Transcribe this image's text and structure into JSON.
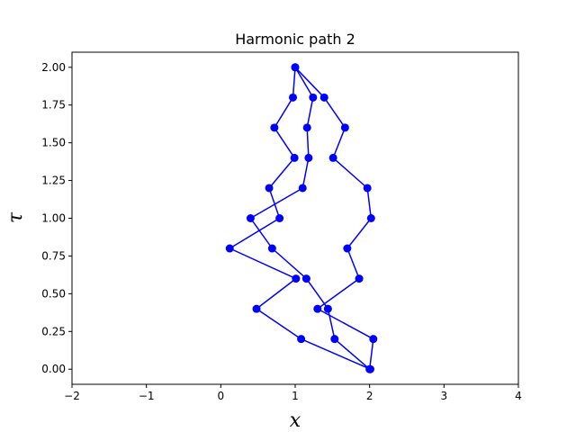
{
  "chart_data": {
    "type": "line",
    "title": "Harmonic path 2",
    "xlabel": "x",
    "ylabel": "τ",
    "xlim": [
      -2,
      4
    ],
    "ylim": [
      -0.1,
      2.1
    ],
    "xticks": [
      "−2",
      "−1",
      "0",
      "1",
      "2",
      "3",
      "4"
    ],
    "yticks": [
      "0.00",
      "0.25",
      "0.50",
      "0.75",
      "1.00",
      "1.25",
      "1.50",
      "1.75",
      "2.00"
    ],
    "grid": false,
    "color": "#0000ff",
    "series": [
      {
        "points": [
          [
            2.01,
            0.0
          ],
          [
            1.08,
            0.2
          ],
          [
            0.48,
            0.4
          ],
          [
            1.01,
            0.6
          ],
          [
            0.12,
            0.8
          ],
          [
            0.79,
            1.0
          ],
          [
            0.65,
            1.2
          ],
          [
            0.99,
            1.4
          ],
          [
            0.72,
            1.6
          ],
          [
            0.97,
            1.8
          ],
          [
            1.0,
            2.0
          ],
          [
            1.39,
            1.8
          ],
          [
            1.67,
            1.6
          ],
          [
            1.51,
            1.4
          ],
          [
            1.97,
            1.2
          ],
          [
            2.02,
            1.0
          ],
          [
            1.7,
            0.8
          ],
          [
            1.86,
            0.6
          ],
          [
            1.3,
            0.4
          ],
          [
            2.05,
            0.2
          ],
          [
            2.0,
            0.0
          ],
          [
            1.53,
            0.2
          ],
          [
            1.44,
            0.4
          ],
          [
            1.15,
            0.6
          ],
          [
            0.69,
            0.8
          ],
          [
            0.4,
            1.0
          ],
          [
            1.1,
            1.2
          ],
          [
            1.18,
            1.4
          ],
          [
            1.16,
            1.6
          ],
          [
            1.24,
            1.8
          ],
          [
            1.0,
            2.0
          ]
        ]
      }
    ]
  }
}
